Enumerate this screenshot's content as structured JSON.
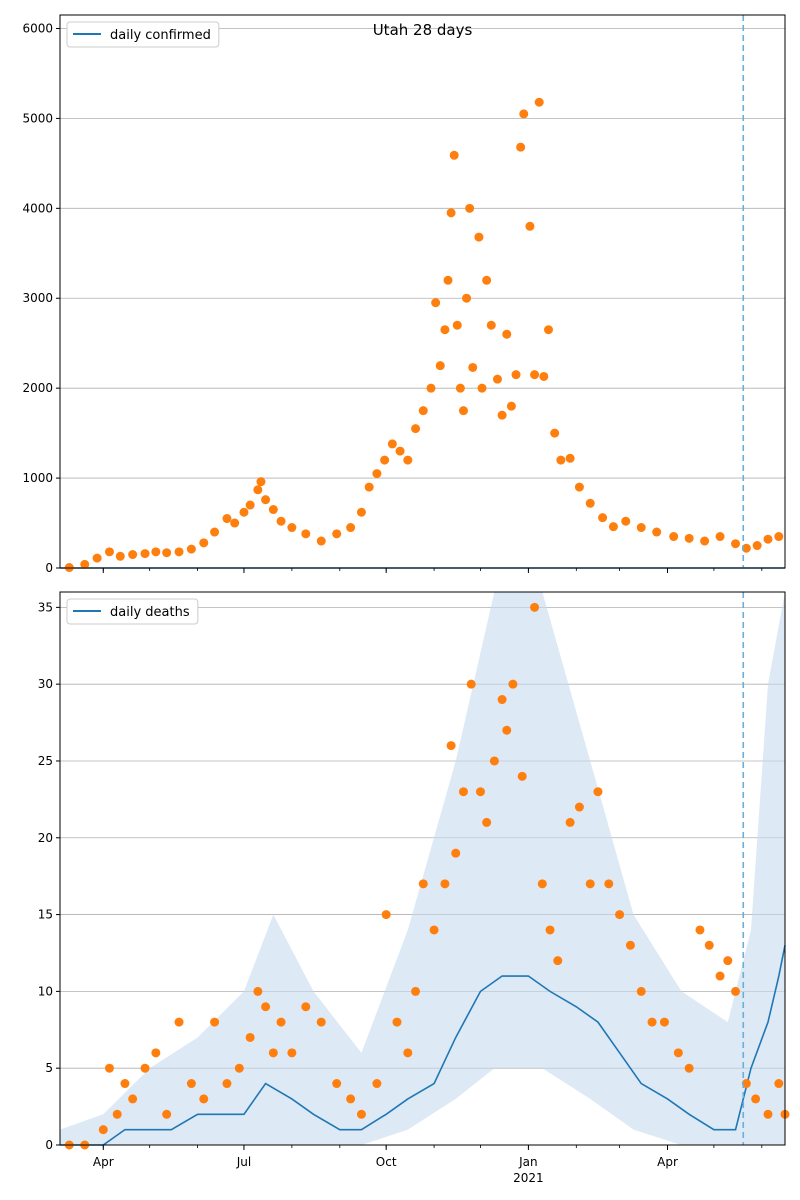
{
  "chart_data": [
    {
      "type": "scatter",
      "title": "Utah 28 days",
      "xlabel": "",
      "ylabel": "",
      "xlim": [
        "2020-03-04",
        "2021-06-16"
      ],
      "ylim": [
        0,
        6150
      ],
      "yticks": [
        0,
        1000,
        2000,
        3000,
        4000,
        5000,
        6000
      ],
      "xticks": [
        {
          "date": "2020-04-01",
          "label": "Apr"
        },
        {
          "date": "2020-07-01",
          "label": "Jul"
        },
        {
          "date": "2020-10-01",
          "label": "Oct"
        },
        {
          "date": "2021-01-01",
          "label": "Jan",
          "sublabel": "2021"
        },
        {
          "date": "2021-04-01",
          "label": "Apr"
        }
      ],
      "grid": "horizontal",
      "legend_position": "top-left",
      "forecast_start": "2021-05-20",
      "colors": {
        "line": "#1f77b4",
        "points": "#ff7f0e",
        "vline": "#6baed6"
      },
      "series": [
        {
          "name": "daily confirmed",
          "kind": "line",
          "points": [
            [
              "2020-03-04",
              0
            ],
            [
              "2021-06-16",
              0
            ]
          ]
        },
        {
          "kind": "scatter",
          "points": [
            [
              "2020-03-10",
              5
            ],
            [
              "2020-03-20",
              40
            ],
            [
              "2020-03-28",
              110
            ],
            [
              "2020-04-05",
              180
            ],
            [
              "2020-04-12",
              130
            ],
            [
              "2020-04-20",
              150
            ],
            [
              "2020-04-28",
              160
            ],
            [
              "2020-05-05",
              180
            ],
            [
              "2020-05-12",
              170
            ],
            [
              "2020-05-20",
              180
            ],
            [
              "2020-05-28",
              210
            ],
            [
              "2020-06-05",
              280
            ],
            [
              "2020-06-12",
              400
            ],
            [
              "2020-06-20",
              550
            ],
            [
              "2020-06-25",
              500
            ],
            [
              "2020-07-01",
              620
            ],
            [
              "2020-07-05",
              700
            ],
            [
              "2020-07-10",
              870
            ],
            [
              "2020-07-12",
              960
            ],
            [
              "2020-07-15",
              760
            ],
            [
              "2020-07-20",
              650
            ],
            [
              "2020-07-25",
              520
            ],
            [
              "2020-08-01",
              450
            ],
            [
              "2020-08-10",
              380
            ],
            [
              "2020-08-20",
              300
            ],
            [
              "2020-08-30",
              380
            ],
            [
              "2020-09-08",
              450
            ],
            [
              "2020-09-15",
              620
            ],
            [
              "2020-09-20",
              900
            ],
            [
              "2020-09-25",
              1050
            ],
            [
              "2020-09-30",
              1200
            ],
            [
              "2020-10-05",
              1380
            ],
            [
              "2020-10-10",
              1300
            ],
            [
              "2020-10-15",
              1200
            ],
            [
              "2020-10-20",
              1550
            ],
            [
              "2020-10-25",
              1750
            ],
            [
              "2020-10-30",
              2000
            ],
            [
              "2020-11-02",
              2950
            ],
            [
              "2020-11-05",
              2250
            ],
            [
              "2020-11-08",
              2650
            ],
            [
              "2020-11-10",
              3200
            ],
            [
              "2020-11-12",
              3950
            ],
            [
              "2020-11-14",
              4590
            ],
            [
              "2020-11-16",
              2700
            ],
            [
              "2020-11-18",
              2000
            ],
            [
              "2020-11-20",
              1750
            ],
            [
              "2020-11-22",
              3000
            ],
            [
              "2020-11-24",
              4000
            ],
            [
              "2020-11-26",
              2230
            ],
            [
              "2020-11-30",
              3680
            ],
            [
              "2020-12-02",
              2000
            ],
            [
              "2020-12-05",
              3200
            ],
            [
              "2020-12-08",
              2700
            ],
            [
              "2020-12-12",
              2100
            ],
            [
              "2020-12-15",
              1700
            ],
            [
              "2020-12-18",
              2600
            ],
            [
              "2020-12-21",
              1800
            ],
            [
              "2020-12-24",
              2150
            ],
            [
              "2020-12-27",
              4680
            ],
            [
              "2020-12-29",
              5050
            ],
            [
              "2021-01-02",
              3800
            ],
            [
              "2021-01-05",
              2150
            ],
            [
              "2021-01-08",
              5180
            ],
            [
              "2021-01-11",
              2130
            ],
            [
              "2021-01-14",
              2650
            ],
            [
              "2021-01-18",
              1500
            ],
            [
              "2021-01-22",
              1200
            ],
            [
              "2021-01-28",
              1220
            ],
            [
              "2021-02-03",
              900
            ],
            [
              "2021-02-10",
              720
            ],
            [
              "2021-02-18",
              560
            ],
            [
              "2021-02-25",
              460
            ],
            [
              "2021-03-05",
              520
            ],
            [
              "2021-03-15",
              450
            ],
            [
              "2021-03-25",
              400
            ],
            [
              "2021-04-05",
              350
            ],
            [
              "2021-04-15",
              330
            ],
            [
              "2021-04-25",
              300
            ],
            [
              "2021-05-05",
              350
            ],
            [
              "2021-05-15",
              270
            ],
            [
              "2021-05-22",
              220
            ],
            [
              "2021-05-29",
              250
            ],
            [
              "2021-06-05",
              320
            ],
            [
              "2021-06-12",
              350
            ]
          ]
        }
      ]
    },
    {
      "type": "scatter",
      "title": "",
      "xlabel": "",
      "ylabel": "",
      "xlim": [
        "2020-03-04",
        "2021-06-16"
      ],
      "ylim": [
        0,
        36
      ],
      "yticks": [
        0,
        5,
        10,
        15,
        20,
        25,
        30,
        35
      ],
      "xticks": [
        {
          "date": "2020-04-01",
          "label": "Apr"
        },
        {
          "date": "2020-07-01",
          "label": "Jul"
        },
        {
          "date": "2020-10-01",
          "label": "Oct"
        },
        {
          "date": "2021-01-01",
          "label": "Jan",
          "sublabel": "2021"
        },
        {
          "date": "2021-04-01",
          "label": "Apr"
        }
      ],
      "grid": "horizontal",
      "legend_position": "top-left",
      "forecast_start": "2021-05-20",
      "colors": {
        "line": "#1f77b4",
        "points": "#ff7f0e",
        "vline": "#6baed6",
        "band": "#c6dbef"
      },
      "series": [
        {
          "name": "daily deaths",
          "kind": "line",
          "points": [
            [
              "2020-03-04",
              0
            ],
            [
              "2020-04-01",
              0
            ],
            [
              "2020-04-15",
              1
            ],
            [
              "2020-05-01",
              1
            ],
            [
              "2020-05-15",
              1
            ],
            [
              "2020-06-01",
              2
            ],
            [
              "2020-06-15",
              2
            ],
            [
              "2020-07-01",
              2
            ],
            [
              "2020-07-15",
              4
            ],
            [
              "2020-08-01",
              3
            ],
            [
              "2020-08-15",
              2
            ],
            [
              "2020-09-01",
              1
            ],
            [
              "2020-09-15",
              1
            ],
            [
              "2020-10-01",
              2
            ],
            [
              "2020-10-15",
              3
            ],
            [
              "2020-11-01",
              4
            ],
            [
              "2020-11-15",
              7
            ],
            [
              "2020-12-01",
              10
            ],
            [
              "2020-12-15",
              11
            ],
            [
              "2021-01-01",
              11
            ],
            [
              "2021-01-15",
              10
            ],
            [
              "2021-02-01",
              9
            ],
            [
              "2021-02-15",
              8
            ],
            [
              "2021-03-01",
              6
            ],
            [
              "2021-03-15",
              4
            ],
            [
              "2021-04-01",
              3
            ],
            [
              "2021-04-15",
              2
            ],
            [
              "2021-05-01",
              1
            ],
            [
              "2021-05-15",
              1
            ],
            [
              "2021-05-25",
              5
            ],
            [
              "2021-06-05",
              8
            ],
            [
              "2021-06-12",
              11
            ],
            [
              "2021-06-16",
              13
            ]
          ]
        },
        {
          "kind": "band",
          "points": [
            [
              "2020-03-04",
              0,
              1
            ],
            [
              "2020-04-01",
              0,
              2
            ],
            [
              "2020-05-01",
              0,
              5
            ],
            [
              "2020-06-01",
              0,
              7
            ],
            [
              "2020-07-01",
              0,
              10
            ],
            [
              "2020-07-20",
              0,
              15
            ],
            [
              "2020-08-15",
              0,
              10
            ],
            [
              "2020-09-15",
              0,
              6
            ],
            [
              "2020-10-15",
              1,
              14
            ],
            [
              "2020-11-15",
              3,
              25
            ],
            [
              "2020-12-10",
              5,
              36
            ],
            [
              "2021-01-10",
              5,
              36
            ],
            [
              "2021-02-10",
              3,
              25
            ],
            [
              "2021-03-10",
              1,
              15
            ],
            [
              "2021-04-10",
              0,
              10
            ],
            [
              "2021-05-10",
              0,
              8
            ],
            [
              "2021-05-25",
              0,
              14
            ],
            [
              "2021-06-05",
              0,
              30
            ],
            [
              "2021-06-16",
              0,
              36
            ]
          ]
        },
        {
          "kind": "scatter",
          "points": [
            [
              "2020-03-10",
              0
            ],
            [
              "2020-03-20",
              0
            ],
            [
              "2020-04-01",
              1
            ],
            [
              "2020-04-05",
              5
            ],
            [
              "2020-04-10",
              2
            ],
            [
              "2020-04-15",
              4
            ],
            [
              "2020-04-20",
              3
            ],
            [
              "2020-04-28",
              5
            ],
            [
              "2020-05-05",
              6
            ],
            [
              "2020-05-12",
              2
            ],
            [
              "2020-05-20",
              8
            ],
            [
              "2020-05-28",
              4
            ],
            [
              "2020-06-05",
              3
            ],
            [
              "2020-06-12",
              8
            ],
            [
              "2020-06-20",
              4
            ],
            [
              "2020-06-28",
              5
            ],
            [
              "2020-07-05",
              7
            ],
            [
              "2020-07-10",
              10
            ],
            [
              "2020-07-15",
              9
            ],
            [
              "2020-07-20",
              6
            ],
            [
              "2020-07-25",
              8
            ],
            [
              "2020-08-01",
              6
            ],
            [
              "2020-08-10",
              9
            ],
            [
              "2020-08-20",
              8
            ],
            [
              "2020-08-30",
              4
            ],
            [
              "2020-09-08",
              3
            ],
            [
              "2020-09-15",
              2
            ],
            [
              "2020-09-25",
              4
            ],
            [
              "2020-10-01",
              15
            ],
            [
              "2020-10-08",
              8
            ],
            [
              "2020-10-15",
              6
            ],
            [
              "2020-10-20",
              10
            ],
            [
              "2020-10-25",
              17
            ],
            [
              "2020-11-01",
              14
            ],
            [
              "2020-11-08",
              17
            ],
            [
              "2020-11-12",
              26
            ],
            [
              "2020-11-15",
              19
            ],
            [
              "2020-11-20",
              23
            ],
            [
              "2020-11-25",
              30
            ],
            [
              "2020-12-01",
              23
            ],
            [
              "2020-12-05",
              21
            ],
            [
              "2020-12-10",
              25
            ],
            [
              "2020-12-15",
              29
            ],
            [
              "2020-12-18",
              27
            ],
            [
              "2020-12-22",
              30
            ],
            [
              "2020-12-28",
              24
            ],
            [
              "2021-01-05",
              35
            ],
            [
              "2021-01-10",
              17
            ],
            [
              "2021-01-15",
              14
            ],
            [
              "2021-01-20",
              12
            ],
            [
              "2021-01-28",
              21
            ],
            [
              "2021-02-03",
              22
            ],
            [
              "2021-02-10",
              17
            ],
            [
              "2021-02-15",
              23
            ],
            [
              "2021-02-22",
              17
            ],
            [
              "2021-03-01",
              15
            ],
            [
              "2021-03-08",
              13
            ],
            [
              "2021-03-15",
              10
            ],
            [
              "2021-03-22",
              8
            ],
            [
              "2021-03-30",
              8
            ],
            [
              "2021-04-08",
              6
            ],
            [
              "2021-04-15",
              5
            ],
            [
              "2021-04-22",
              14
            ],
            [
              "2021-04-28",
              13
            ],
            [
              "2021-05-05",
              11
            ],
            [
              "2021-05-10",
              12
            ],
            [
              "2021-05-15",
              10
            ],
            [
              "2021-05-22",
              4
            ],
            [
              "2021-05-28",
              3
            ],
            [
              "2021-06-05",
              2
            ],
            [
              "2021-06-12",
              4
            ],
            [
              "2021-06-16",
              2
            ]
          ]
        }
      ]
    }
  ]
}
